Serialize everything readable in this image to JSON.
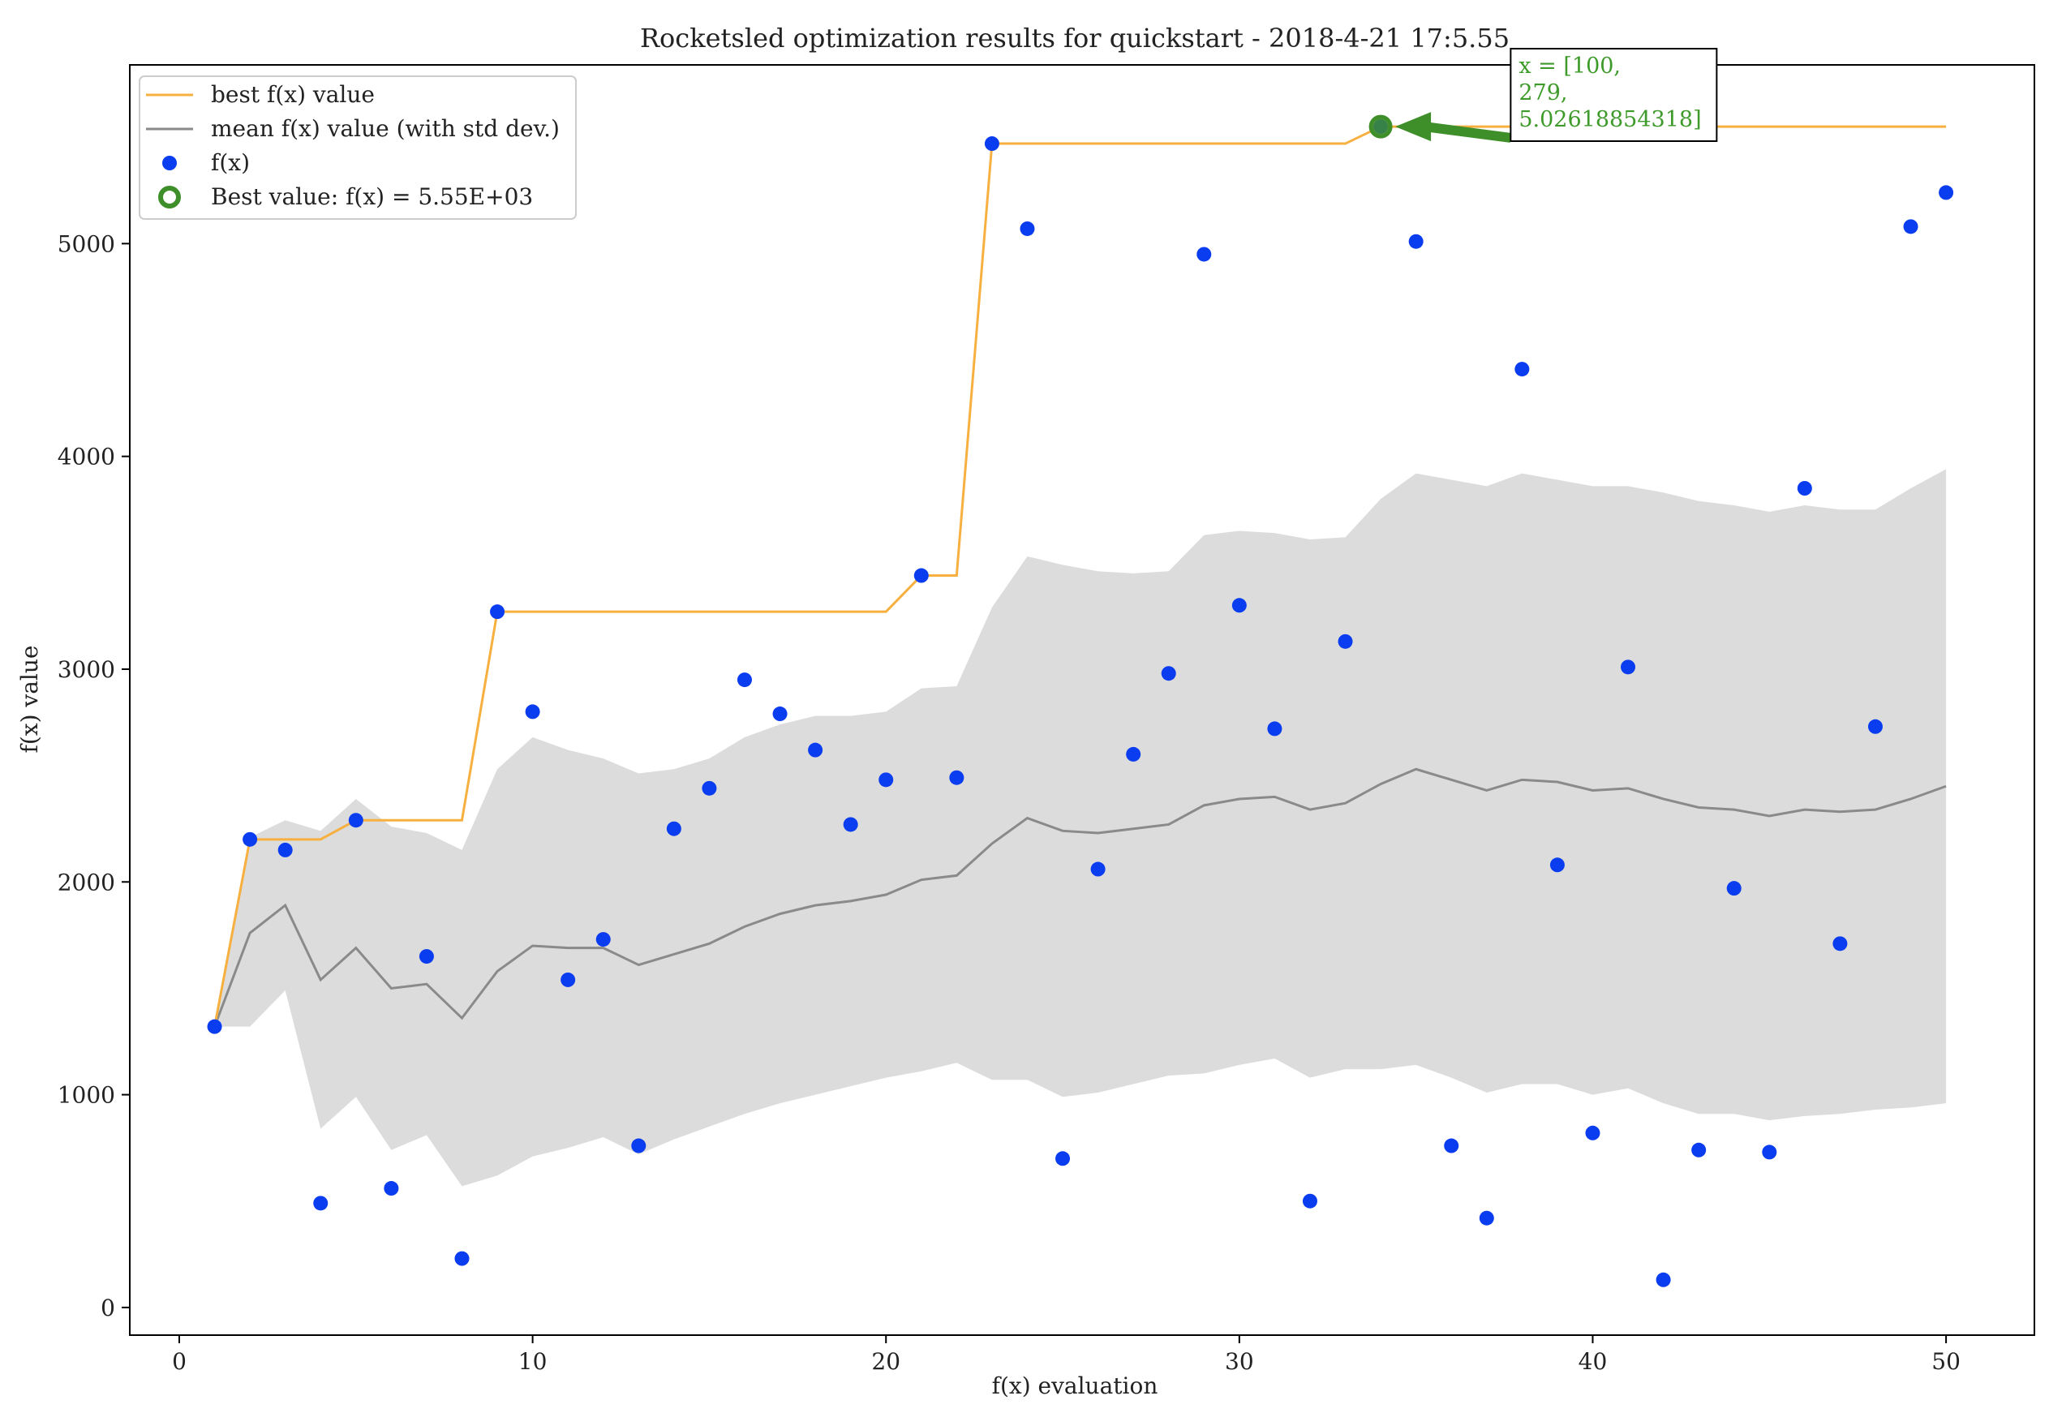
{
  "chart_data": {
    "type": "scatter",
    "title": "Rocketsled optimization results for quickstart - 2018-4-21 17:5.55",
    "xlabel": "f(x) evaluation",
    "ylabel": "f(x) value",
    "xlim": [
      -1.4,
      52.5
    ],
    "ylim": [
      -130,
      5840
    ],
    "xticks": [
      0,
      10,
      20,
      30,
      40,
      50
    ],
    "yticks": [
      0,
      1000,
      2000,
      3000,
      4000,
      5000
    ],
    "grid": false,
    "legend_position": "top-left",
    "legend": [
      {
        "key": "best",
        "label": "best f(x) value"
      },
      {
        "key": "mean",
        "label": "mean f(x) value (with std dev.)"
      },
      {
        "key": "points",
        "label": "f(x)"
      },
      {
        "key": "bestpt",
        "label": "Best value: f(x) = 5.55E+03"
      }
    ],
    "colors": {
      "best_line": "#f7b03f",
      "mean_line": "#8a8a8a",
      "band": "#dcdcdc",
      "points": "#0a3cf0",
      "best_marker": "#3e8e2a",
      "annotation": "#3e9a2a"
    },
    "x": [
      1,
      2,
      3,
      4,
      5,
      6,
      7,
      8,
      9,
      10,
      11,
      12,
      13,
      14,
      15,
      16,
      17,
      18,
      19,
      20,
      21,
      22,
      23,
      24,
      25,
      26,
      27,
      28,
      29,
      30,
      31,
      32,
      33,
      34,
      35,
      36,
      37,
      38,
      39,
      40,
      41,
      42,
      43,
      44,
      45,
      46,
      47,
      48,
      49,
      50
    ],
    "points": [
      1320,
      2200,
      2150,
      490,
      2290,
      560,
      1650,
      230,
      3270,
      2800,
      1540,
      1730,
      760,
      2250,
      2440,
      2950,
      2790,
      2620,
      2270,
      2480,
      3440,
      2490,
      5470,
      5070,
      700,
      2060,
      2600,
      2980,
      4950,
      3300,
      2720,
      500,
      3130,
      5550,
      5010,
      760,
      420,
      4410,
      2080,
      820,
      3010,
      130,
      740,
      1970,
      730,
      3850,
      1710,
      2730,
      5080,
      5240
    ],
    "best": [
      1320,
      2200,
      2200,
      2200,
      2290,
      2290,
      2290,
      2290,
      3270,
      3270,
      3270,
      3270,
      3270,
      3270,
      3270,
      3270,
      3270,
      3270,
      3270,
      3270,
      3440,
      3440,
      5470,
      5470,
      5470,
      5470,
      5470,
      5470,
      5470,
      5470,
      5470,
      5470,
      5470,
      5550,
      5550,
      5550,
      5550,
      5550,
      5550,
      5550,
      5550,
      5550,
      5550,
      5550,
      5550,
      5550,
      5550,
      5550,
      5550,
      5550
    ],
    "mean": [
      1320,
      1760,
      1890,
      1540,
      1690,
      1500,
      1520,
      1360,
      1580,
      1700,
      1690,
      1690,
      1610,
      1660,
      1710,
      1790,
      1850,
      1890,
      1910,
      1940,
      2010,
      2030,
      2180,
      2300,
      2240,
      2230,
      2250,
      2270,
      2360,
      2390,
      2400,
      2340,
      2370,
      2460,
      2530,
      2480,
      2430,
      2480,
      2470,
      2430,
      2440,
      2390,
      2350,
      2340,
      2310,
      2340,
      2330,
      2340,
      2390,
      2450
    ],
    "upper": [
      1320,
      2210,
      2290,
      2240,
      2390,
      2260,
      2230,
      2150,
      2530,
      2680,
      2620,
      2580,
      2510,
      2530,
      2580,
      2680,
      2740,
      2780,
      2780,
      2800,
      2910,
      2920,
      3290,
      3530,
      3490,
      3460,
      3450,
      3460,
      3630,
      3650,
      3640,
      3610,
      3620,
      3800,
      3920,
      3890,
      3860,
      3920,
      3890,
      3860,
      3860,
      3830,
      3790,
      3770,
      3740,
      3770,
      3750,
      3750,
      3850,
      3940
    ],
    "lower": [
      1320,
      1320,
      1490,
      840,
      990,
      740,
      810,
      570,
      620,
      710,
      750,
      800,
      720,
      790,
      850,
      910,
      960,
      1000,
      1040,
      1080,
      1110,
      1150,
      1070,
      1070,
      990,
      1010,
      1050,
      1090,
      1100,
      1140,
      1170,
      1080,
      1120,
      1120,
      1140,
      1080,
      1010,
      1050,
      1050,
      1000,
      1030,
      960,
      910,
      910,
      880,
      900,
      910,
      930,
      940,
      960
    ],
    "best_point": {
      "x": 34,
      "y": 5550
    },
    "annotation": {
      "lines": [
        "x = [100,",
        "279,",
        "5.02618854318]"
      ],
      "x": 38.0,
      "y": 5520
    }
  }
}
